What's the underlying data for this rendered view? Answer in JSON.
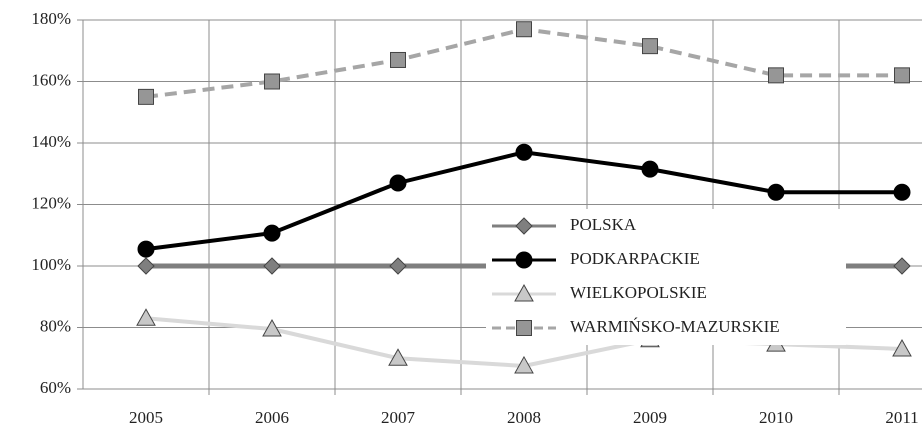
{
  "chart_data": {
    "type": "line",
    "categories": [
      "2005",
      "2006",
      "2007",
      "2008",
      "2009",
      "2010",
      "2011"
    ],
    "ylim": [
      60,
      180
    ],
    "yticks": [
      {
        "value": 60,
        "label": "60%"
      },
      {
        "value": 80,
        "label": "80%"
      },
      {
        "value": 100,
        "label": "100%"
      },
      {
        "value": 120,
        "label": "120%"
      },
      {
        "value": 140,
        "label": "140%"
      },
      {
        "value": 160,
        "label": "160%"
      },
      {
        "value": 180,
        "label": "180%"
      }
    ],
    "grid": true,
    "legend": "center-right",
    "series": [
      {
        "name": "POLSKA",
        "color": "#7f7f7f",
        "marker": "diamond",
        "dash": false,
        "values": [
          100,
          100,
          100,
          100,
          100,
          100,
          100
        ]
      },
      {
        "name": "PODKARPACKIE",
        "color": "#000000",
        "marker": "circle",
        "dash": false,
        "values": [
          105.5,
          110.7,
          127,
          137,
          131.5,
          124,
          124
        ]
      },
      {
        "name": "WIELKOPOLSKIE",
        "color": "#d9d9d9",
        "marker": "triangle",
        "dash": false,
        "values": [
          83,
          79.5,
          70,
          67.5,
          76,
          74.6,
          73
        ]
      },
      {
        "name": "WARMIŃSKO-MAZURSKIE",
        "color": "#a6a6a6",
        "marker": "square",
        "dash": true,
        "values": [
          155,
          160,
          167,
          177,
          171.5,
          162,
          162
        ]
      }
    ]
  }
}
